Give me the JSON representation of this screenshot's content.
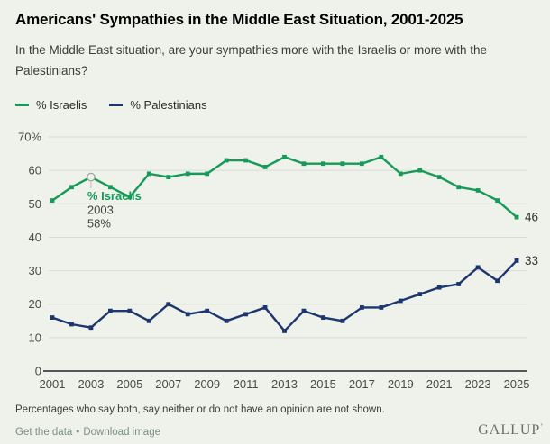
{
  "page": {
    "title": "Americans' Sympathies in the Middle East Situation, 2001-2025",
    "subtitle_lines": [
      "In the Middle East situation, are your sympathies more with the Israelis or more with the",
      "Palestinians?"
    ],
    "footnote": "Percentages who say both, say neither or do not have an opinion are not shown.",
    "footer_links": [
      {
        "label": "Get the data"
      },
      {
        "label": "Download image"
      }
    ],
    "footer_separator": "•",
    "brand": "GALLUP",
    "brand_mark": "ʼ"
  },
  "colors": {
    "israelis": "#169a59",
    "palestinians": "#1e366f",
    "background": "#eef2ea",
    "grid": "#d8dcd3",
    "axis": "#53565a",
    "tick_text": "#4a4a4a",
    "value_label_text": "#333333",
    "annotation_text": "#444444",
    "annotation_ring": "#9ba09b",
    "annotation_connector": "#b9bdb6"
  },
  "legend": [
    {
      "label": "% Israelis",
      "color": "#169a59"
    },
    {
      "label": "% Palestinians",
      "color": "#1e366f"
    }
  ],
  "chart_data": {
    "type": "line",
    "title": "Americans' Sympathies in the Middle East Situation, 2001-2025",
    "x": [
      2001,
      2002,
      2003,
      2004,
      2005,
      2006,
      2007,
      2008,
      2009,
      2010,
      2011,
      2012,
      2013,
      2014,
      2015,
      2016,
      2017,
      2018,
      2019,
      2020,
      2021,
      2022,
      2023,
      2024,
      2025
    ],
    "series": [
      {
        "name": "% Israelis",
        "color": "#169a59",
        "values": [
          51,
          55,
          58,
          55,
          52,
          59,
          58,
          59,
          59,
          63,
          63,
          61,
          64,
          62,
          62,
          62,
          62,
          64,
          59,
          60,
          58,
          55,
          54,
          51,
          46
        ],
        "end_label": "46"
      },
      {
        "name": "% Palestinians",
        "color": "#1e366f",
        "values": [
          16,
          14,
          13,
          18,
          18,
          15,
          20,
          17,
          18,
          15,
          17,
          19,
          12,
          18,
          16,
          15,
          19,
          19,
          21,
          23,
          25,
          26,
          31,
          27,
          33
        ],
        "end_label": "33"
      }
    ],
    "ylim": [
      0,
      70
    ],
    "yticks": [
      0,
      10,
      20,
      30,
      40,
      50,
      60,
      70
    ],
    "ytick_labels": [
      "0",
      "10",
      "20",
      "30",
      "40",
      "50",
      "60",
      "70%"
    ],
    "xtick_labels": [
      "2001",
      "2003",
      "2005",
      "2007",
      "2009",
      "2011",
      "2013",
      "2015",
      "2017",
      "2019",
      "2021",
      "2023",
      "2025"
    ],
    "grid": true,
    "legend_position": "top-left",
    "annotation": {
      "series": "% Israelis",
      "x": 2003,
      "y": 58,
      "label": "% Israelis",
      "year_label": "2003",
      "value_label": "58%"
    }
  }
}
